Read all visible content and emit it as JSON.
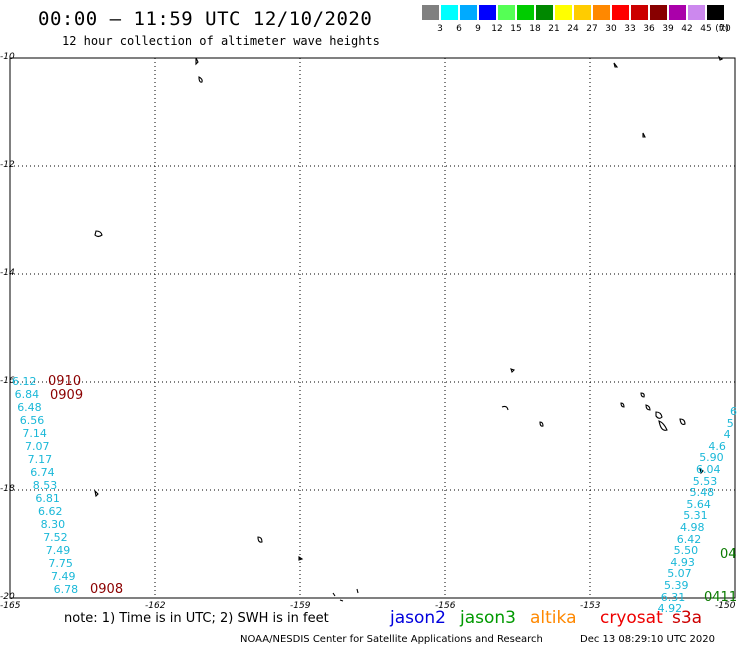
{
  "header": {
    "title": "00:00 – 11:59 UTC 12/10/2020",
    "subtitle": "12 hour collection of altimeter wave heights"
  },
  "legend": {
    "unit": "(ft)",
    "bins": [
      {
        "label": "3",
        "color": "#808080"
      },
      {
        "label": "6",
        "color": "#00ffff"
      },
      {
        "label": "9",
        "color": "#00aaff"
      },
      {
        "label": "12",
        "color": "#0000ff"
      },
      {
        "label": "15",
        "color": "#55ff55"
      },
      {
        "label": "18",
        "color": "#00cc00"
      },
      {
        "label": "21",
        "color": "#008800"
      },
      {
        "label": "24",
        "color": "#ffff00"
      },
      {
        "label": "27",
        "color": "#ffcc00"
      },
      {
        "label": "30",
        "color": "#ff8800"
      },
      {
        "label": "33",
        "color": "#ff0000"
      },
      {
        "label": "36",
        "color": "#cc0000"
      },
      {
        "label": "39",
        "color": "#880000"
      },
      {
        "label": "42",
        "color": "#aa00aa"
      },
      {
        "label": "45",
        "color": "#cc88ee"
      },
      {
        "label": "70",
        "color": "#000000"
      }
    ]
  },
  "axes": {
    "lat_labels": [
      "-10",
      "-12",
      "-14",
      "-16",
      "-18",
      "-20"
    ],
    "lon_labels": [
      "-165",
      "-162",
      "-159",
      "-156",
      "-153",
      "-150"
    ]
  },
  "tracks": {
    "left_time_labels": [
      "0910",
      "0909",
      "0908"
    ],
    "left_values": [
      "6.12",
      "6.84",
      "6.48",
      "6.56",
      "7.14",
      "7.07",
      "7.17",
      "6.74",
      "8.53",
      "6.81",
      "6.62",
      "8.30",
      "7.52",
      "7.49",
      "7.75",
      "7.49",
      "6.78"
    ],
    "right_values": [
      "6",
      "5",
      "4",
      "4.6",
      "5.90",
      "6.04",
      "5.53",
      "5.48",
      "5.64",
      "5.31",
      "4.98",
      "6.42",
      "5.50",
      "4.93",
      "5.07",
      "5.39",
      "6.31",
      "4.92"
    ],
    "right_time_labels": [
      "04",
      "0411"
    ]
  },
  "footer": {
    "note": "note: 1) Time is in UTC; 2) SWH is in feet",
    "satellites": [
      {
        "name": "jason2",
        "color": "#0000dd"
      },
      {
        "name": "jason3",
        "color": "#009900"
      },
      {
        "name": "altika",
        "color": "#ff8800"
      },
      {
        "name": "cryosat",
        "color": "#ee0000"
      },
      {
        "name": "s3a",
        "color": "#cc0000"
      }
    ],
    "credit": "NOAA/NESDIS Center for Satellite Applications and Research",
    "timestamp": "Dec 13 08:29:10 UTC 2020"
  }
}
